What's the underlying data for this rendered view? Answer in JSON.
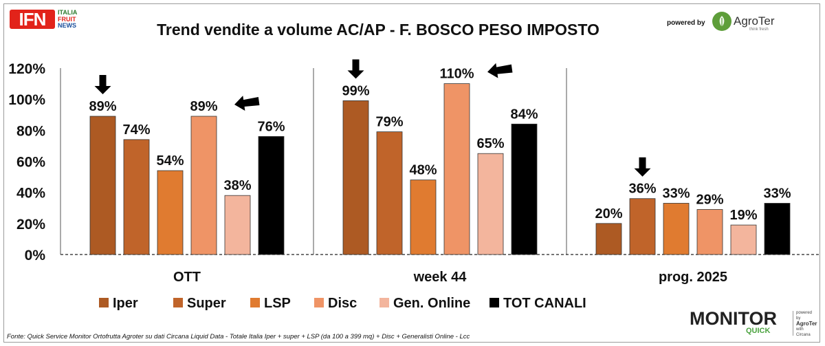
{
  "logo": {
    "ifn": "IFN",
    "words": [
      "ITALIA",
      "FRUIT",
      "NEWS"
    ]
  },
  "powered_by": "powered by",
  "agroter": {
    "name": "AgroTer",
    "tagline": "think fresh"
  },
  "chart_data": {
    "type": "bar",
    "title": "Trend vendite a volume AC/AP - F. BOSCO PESO IMPOSTO",
    "xlabel": "",
    "ylabel": "",
    "ylim": [
      0,
      120
    ],
    "yticks": [
      "0%",
      "20%",
      "40%",
      "60%",
      "80%",
      "100%",
      "120%"
    ],
    "grid": false,
    "categories": [
      "OTT",
      "week 44",
      "prog. 2025"
    ],
    "series": [
      {
        "name": "Iper",
        "color": "#ad5a23",
        "values": [
          89,
          99,
          20
        ],
        "labels": [
          "89%",
          "99%",
          "20%"
        ]
      },
      {
        "name": "Super",
        "color": "#c0642a",
        "values": [
          74,
          79,
          36
        ],
        "labels": [
          "74%",
          "79%",
          "36%"
        ]
      },
      {
        "name": "LSP",
        "color": "#e07b30",
        "values": [
          54,
          48,
          33
        ],
        "labels": [
          "54%",
          "48%",
          "33%"
        ]
      },
      {
        "name": "Disc",
        "color": "#ef9466",
        "values": [
          89,
          110,
          29
        ],
        "labels": [
          "89%",
          "110%",
          "29%"
        ]
      },
      {
        "name": "Gen. Online",
        "color": "#f3b59d",
        "values": [
          38,
          65,
          19
        ],
        "labels": [
          "38%",
          "65%",
          "19%"
        ]
      },
      {
        "name": "TOT CANALI",
        "color": "#000000",
        "values": [
          76,
          84,
          33
        ],
        "labels": [
          "76%",
          "84%",
          "33%"
        ]
      }
    ],
    "annotations": [
      {
        "type": "arrow-down",
        "group": 0,
        "series": 0
      },
      {
        "type": "arrow-left",
        "group": 0,
        "series": 3
      },
      {
        "type": "arrow-down",
        "group": 1,
        "series": 0
      },
      {
        "type": "arrow-left",
        "group": 1,
        "series": 3
      },
      {
        "type": "arrow-down",
        "group": 2,
        "series": 1
      }
    ],
    "legend_position": "bottom"
  },
  "footer": "Fonte: Quick Service Monitor Ortofrutta Agroter su dati Circana Liquid Data - Totale Italia Iper + super + LSP (da 100 a 399 mq) + Disc + Generalisti Online - Lcc",
  "monitor": {
    "word": "MONITOR",
    "quick": "QUICK",
    "side": [
      "powered by",
      "AgroTer",
      "with",
      "Circana"
    ]
  }
}
